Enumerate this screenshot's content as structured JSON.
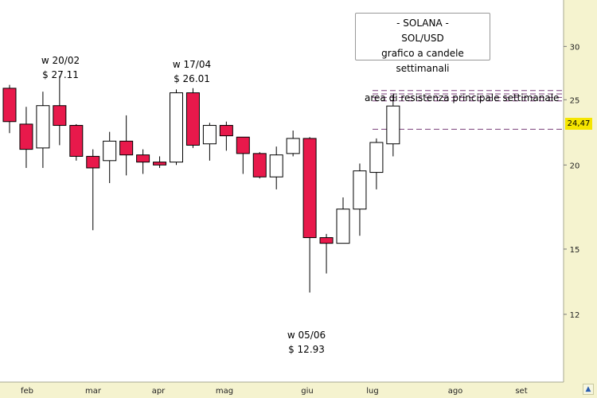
{
  "chart_data": {
    "type": "candlestick",
    "title": [
      "- SOLANA -",
      "SOL/USD",
      "grafico a candele settimanali"
    ],
    "x_ticks": [
      "feb",
      "mar",
      "apr",
      "mag",
      "giu",
      "lug",
      "ago",
      "set"
    ],
    "y_ticks": [
      12,
      15,
      20,
      25,
      30
    ],
    "ylim": [
      11,
      36
    ],
    "y_scale": "log",
    "grid": false,
    "last_price_label": "24,47",
    "candles": [
      {
        "o": 23.2,
        "h": 26.3,
        "l": 22.3,
        "c": 26.0,
        "color": "red"
      },
      {
        "o": 23.0,
        "h": 24.4,
        "l": 19.8,
        "c": 21.1,
        "color": "red"
      },
      {
        "o": 21.2,
        "h": 25.7,
        "l": 19.8,
        "c": 24.5,
        "color": "white"
      },
      {
        "o": 24.5,
        "h": 27.11,
        "l": 21.4,
        "c": 22.9,
        "color": "red"
      },
      {
        "o": 22.9,
        "h": 23.0,
        "l": 20.3,
        "c": 20.6,
        "color": "red"
      },
      {
        "o": 20.6,
        "h": 21.1,
        "l": 16.0,
        "c": 19.8,
        "color": "red"
      },
      {
        "o": 20.3,
        "h": 22.4,
        "l": 18.8,
        "c": 21.7,
        "color": "white"
      },
      {
        "o": 21.7,
        "h": 23.7,
        "l": 19.3,
        "c": 20.7,
        "color": "red"
      },
      {
        "o": 20.7,
        "h": 21.1,
        "l": 19.4,
        "c": 20.2,
        "color": "red"
      },
      {
        "o": 20.2,
        "h": 20.6,
        "l": 19.8,
        "c": 20.0,
        "color": "red"
      },
      {
        "o": 20.2,
        "h": 25.9,
        "l": 20.0,
        "c": 25.6,
        "color": "white"
      },
      {
        "o": 25.6,
        "h": 26.01,
        "l": 21.2,
        "c": 21.4,
        "color": "red"
      },
      {
        "o": 21.5,
        "h": 23.1,
        "l": 20.3,
        "c": 22.9,
        "color": "white"
      },
      {
        "o": 22.9,
        "h": 23.2,
        "l": 21.0,
        "c": 22.1,
        "color": "red"
      },
      {
        "o": 22.0,
        "h": 22.0,
        "l": 19.4,
        "c": 20.8,
        "color": "red"
      },
      {
        "o": 20.8,
        "h": 20.9,
        "l": 19.1,
        "c": 19.2,
        "color": "red"
      },
      {
        "o": 19.2,
        "h": 21.3,
        "l": 18.4,
        "c": 20.7,
        "color": "white"
      },
      {
        "o": 20.8,
        "h": 22.5,
        "l": 20.6,
        "c": 21.9,
        "color": "white"
      },
      {
        "o": 21.9,
        "h": 22.0,
        "l": 12.93,
        "c": 15.6,
        "color": "red"
      },
      {
        "o": 15.6,
        "h": 15.8,
        "l": 13.8,
        "c": 15.3,
        "color": "red"
      },
      {
        "o": 15.3,
        "h": 17.9,
        "l": 15.3,
        "c": 17.2,
        "color": "white"
      },
      {
        "o": 17.2,
        "h": 20.1,
        "l": 15.7,
        "c": 19.6,
        "color": "white"
      },
      {
        "o": 19.5,
        "h": 21.9,
        "l": 18.4,
        "c": 21.6,
        "color": "white"
      },
      {
        "o": 21.5,
        "h": 25.4,
        "l": 20.6,
        "c": 24.47,
        "color": "white"
      }
    ],
    "resistance_lines": [
      25.8,
      25.5,
      25.2,
      24.9
    ],
    "support_line": 22.6,
    "resistance_label": "area di resistenza principale settimanale",
    "annotations": [
      {
        "label": "w 20/02",
        "price": "$ 27.11",
        "candle": 3,
        "pos": "above"
      },
      {
        "label": "w 17/04",
        "price": "$ 26.01",
        "candle": 11,
        "pos": "above"
      },
      {
        "label": "w 05/06",
        "price": "$ 12.93",
        "candle": 18,
        "pos": "below"
      }
    ],
    "colors": {
      "bear": "#e8194b",
      "bull": "#ffffff",
      "axis_bg": "#f5f3cf",
      "lines": "#7a3f7a",
      "tag": "#f5e500"
    }
  }
}
